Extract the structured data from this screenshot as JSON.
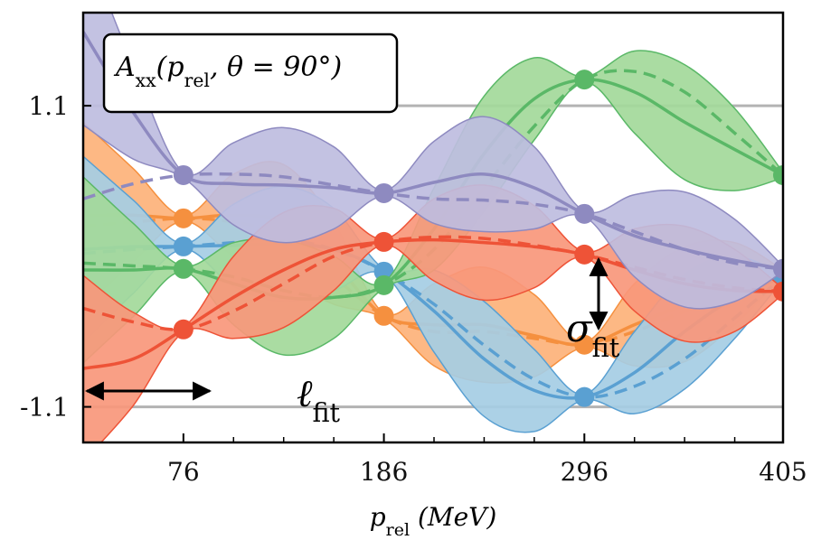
{
  "chart_data": {
    "type": "gp-bands",
    "title": {
      "symbol": "A",
      "subscript": "xx",
      "open": "(p",
      "open_subscript": "rel",
      "rest": ", θ = 90°)"
    },
    "xlabel": {
      "symbol": "p",
      "subscript": "rel",
      "rest": " (MeV)"
    },
    "annotations": {
      "length_scale": {
        "symbol": "ℓ",
        "subscript": "fit"
      },
      "std": {
        "symbol": "σ",
        "subscript": "fit"
      }
    },
    "xlim": [
      21,
      405
    ],
    "ylim": [
      -1.36,
      1.78
    ],
    "xticks": [
      76,
      186,
      296,
      405
    ],
    "xticks_minor": [
      103.5,
      131,
      158.5,
      213.5,
      241,
      268.5,
      323.5,
      351,
      378.5
    ],
    "yticks": [
      -1.1,
      1.1
    ],
    "grid": true,
    "x": [
      21,
      48.5,
      76,
      103.5,
      131,
      158.5,
      186,
      213.5,
      241,
      268.5,
      296,
      323.5,
      351,
      378.5,
      405
    ],
    "band_halfwidth": [
      0.68,
      0.34,
      0.02,
      0.3,
      0.42,
      0.3,
      0.02,
      0.3,
      0.42,
      0.3,
      0.02,
      0.3,
      0.42,
      0.3,
      0.02
    ],
    "training_indices": [
      2,
      6,
      10,
      14
    ],
    "series": [
      {
        "color": "#f5903f",
        "fill": "#fdb27a",
        "values": [
          0.3,
          0.3,
          0.277,
          0.3,
          0.25,
          -0.05,
          -0.435,
          -0.5,
          -0.5,
          -0.58,
          -0.646,
          -0.5,
          -0.35,
          -0.2,
          -0.12
        ],
        "truth": [
          0.22,
          0.25,
          0.277,
          0.25,
          0.15,
          -0.15,
          -0.435,
          -0.55,
          -0.55,
          -0.6,
          -0.646,
          -0.55,
          -0.4,
          -0.25,
          -0.12
        ]
      },
      {
        "color": "#5aa0d2",
        "fill": "#a5cde4",
        "values": [
          0.05,
          0.07,
          0.072,
          0.08,
          0.09,
          0.05,
          -0.112,
          -0.4,
          -0.75,
          -0.98,
          -1.028,
          -0.85,
          -0.55,
          -0.3,
          -0.15
        ],
        "truth": [
          0.02,
          0.05,
          0.072,
          0.1,
          0.12,
          0.05,
          -0.112,
          -0.35,
          -0.65,
          -0.9,
          -1.028,
          -0.95,
          -0.75,
          -0.45,
          -0.15
        ]
      },
      {
        "color": "#5ab867",
        "fill": "#a3d99a",
        "values": [
          -0.1,
          -0.1,
          -0.092,
          -0.2,
          -0.3,
          -0.3,
          -0.211,
          0.2,
          0.75,
          1.15,
          1.291,
          1.2,
          0.98,
          0.78,
          0.593
        ],
        "truth": [
          -0.05,
          -0.07,
          -0.092,
          -0.15,
          -0.25,
          -0.3,
          -0.211,
          0.05,
          0.5,
          0.95,
          1.291,
          1.35,
          1.2,
          0.9,
          0.593
        ]
      },
      {
        "color": "#ee5337",
        "fill": "#f8977b",
        "values": [
          -0.82,
          -0.75,
          -0.534,
          -0.3,
          -0.1,
          0.05,
          0.105,
          0.12,
          0.1,
          0.07,
          0.013,
          -0.1,
          -0.2,
          -0.25,
          -0.257
        ],
        "truth": [
          -0.38,
          -0.48,
          -0.534,
          -0.4,
          -0.2,
          0.0,
          0.105,
          0.14,
          0.13,
          0.08,
          0.013,
          -0.08,
          -0.17,
          -0.23,
          -0.257
        ]
      },
      {
        "color": "#8e8ac0",
        "fill": "#bebde0",
        "values": [
          1.64,
          1.05,
          0.593,
          0.53,
          0.52,
          0.5,
          0.461,
          0.54,
          0.6,
          0.5,
          0.31,
          0.15,
          0.05,
          -0.03,
          -0.092
        ],
        "truth": [
          0.42,
          0.53,
          0.593,
          0.6,
          0.58,
          0.52,
          0.461,
          0.42,
          0.41,
          0.38,
          0.31,
          0.18,
          0.05,
          -0.05,
          -0.092
        ]
      }
    ]
  }
}
